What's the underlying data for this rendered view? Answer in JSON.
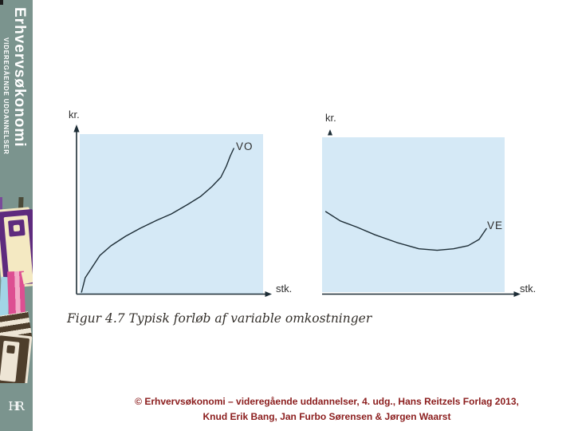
{
  "sidebar": {
    "title": "Erhvervsøkonomi",
    "subtitle": "VIDEREGÅENDE UDDANNELSER",
    "logo_text": "HR"
  },
  "caption": {
    "text": "Figur 4.7 Typisk forløb af variable omkostninger"
  },
  "footer": {
    "line1": "© Erhvervsøkonomi – videregående uddannelser, 4. udg., Hans Reitzels Forlag 2013,",
    "line2": "Knud Erik Bang, Jan Furbo Sørensen & Jørgen Waarst"
  },
  "colors": {
    "sidebar_bg": "#7b948e",
    "plot_fill": "#d5e9f6",
    "axis": "#1d2d36",
    "footer_text": "#8b1d1d"
  },
  "chart_data": [
    {
      "type": "line",
      "ylabel": "kr.",
      "xlabel": "stk.",
      "gridlines": false,
      "tick_labels": [],
      "plot_background": "#d5e9f6",
      "series": [
        {
          "name": "VO",
          "points": [
            [
              1,
              1
            ],
            [
              3,
              10
            ],
            [
              7,
              17
            ],
            [
              11,
              24
            ],
            [
              17,
              30
            ],
            [
              25,
              36
            ],
            [
              33,
              41
            ],
            [
              42,
              46
            ],
            [
              50,
              50
            ],
            [
              59,
              56
            ],
            [
              66,
              61
            ],
            [
              72,
              67
            ],
            [
              77,
              73
            ],
            [
              80,
              80
            ],
            [
              82,
              86
            ],
            [
              84,
              91
            ]
          ]
        }
      ]
    },
    {
      "type": "line",
      "ylabel": "kr.",
      "xlabel": "stk.",
      "gridlines": false,
      "tick_labels": [],
      "plot_background": "#d5e9f6",
      "series": [
        {
          "name": "VE",
          "points": [
            [
              2,
              52
            ],
            [
              10,
              46
            ],
            [
              19,
              42
            ],
            [
              29,
              37
            ],
            [
              41,
              32
            ],
            [
              53,
              28
            ],
            [
              63,
              27
            ],
            [
              72,
              28
            ],
            [
              80,
              30
            ],
            [
              86,
              34
            ],
            [
              90,
              41
            ]
          ]
        }
      ]
    }
  ]
}
